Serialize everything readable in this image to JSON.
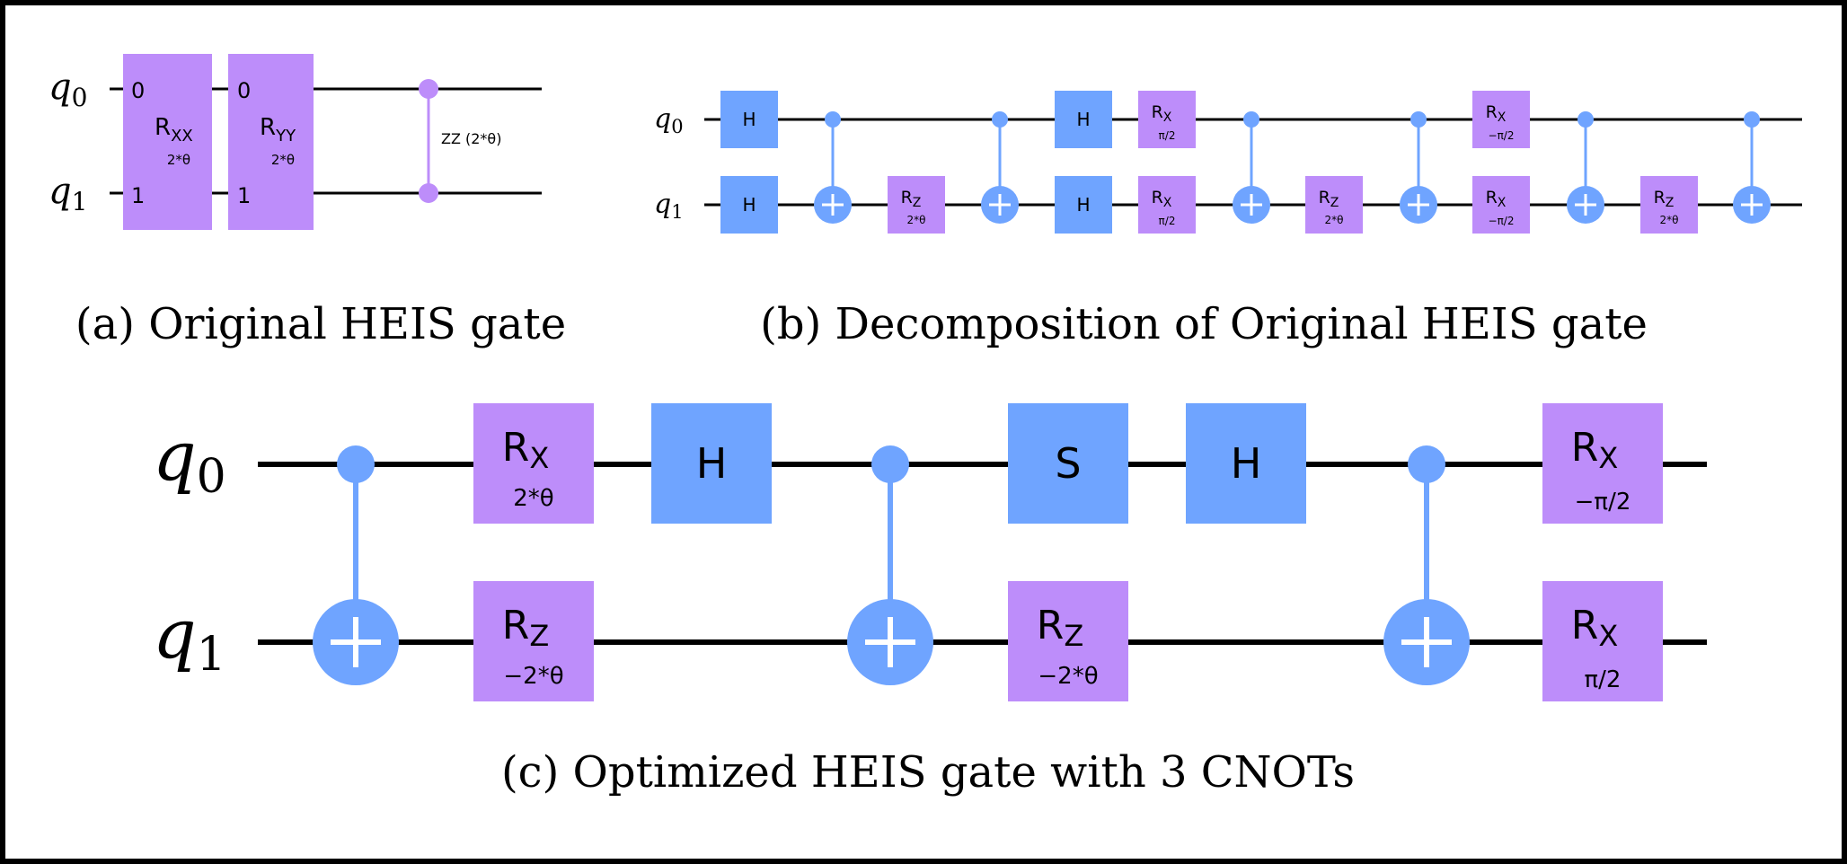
{
  "qubits": {
    "q0": {
      "base": "q",
      "sub": "0"
    },
    "q1": {
      "base": "q",
      "sub": "1"
    }
  },
  "panel_a": {
    "caption": "(a) Original HEIS gate",
    "gate_rxx": {
      "port0": "0",
      "port1": "1",
      "label_main": "R",
      "label_sub": "XX",
      "param": "2*θ"
    },
    "gate_ryy": {
      "port0": "0",
      "port1": "1",
      "label_main": "R",
      "label_sub": "YY",
      "param": "2*θ"
    },
    "zz_label": "ZZ (2*θ)"
  },
  "panel_b": {
    "caption": "(b) Decomposition of Original HEIS gate",
    "h_label": "H",
    "rz": {
      "main": "R",
      "sub": "Z",
      "param": "2*θ"
    },
    "rx_pos": {
      "main": "R",
      "sub": "X",
      "param": "π/2"
    },
    "rx_neg": {
      "main": "R",
      "sub": "X",
      "param": "−π/2"
    }
  },
  "panel_c": {
    "caption": "(c) Optimized HEIS gate with 3 CNOTs",
    "rx_2theta": {
      "main": "R",
      "sub": "X",
      "param": "2*θ"
    },
    "rz_neg2theta_1": {
      "main": "R",
      "sub": "Z",
      "param": "−2*θ"
    },
    "h1": "H",
    "s": "S",
    "rz_neg2theta_2": {
      "main": "R",
      "sub": "Z",
      "param": "−2*θ"
    },
    "h2": "H",
    "rx_neg": {
      "main": "R",
      "sub": "X",
      "param": "−π/2"
    },
    "rx_pos": {
      "main": "R",
      "sub": "X",
      "param": "π/2"
    }
  },
  "colors": {
    "hadamard_blue": "#6fa4ff",
    "rotation_purple": "#bd8dfa",
    "frame": "#000000"
  }
}
